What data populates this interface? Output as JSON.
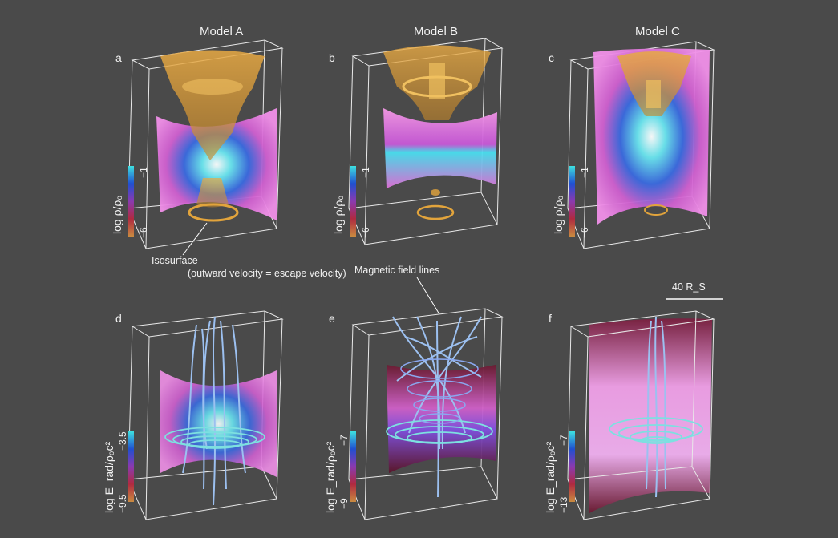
{
  "models": [
    {
      "title": "Model A"
    },
    {
      "title": "Model B"
    },
    {
      "title": "Model C"
    }
  ],
  "panels": [
    {
      "letter": "a",
      "colorbar": {
        "label": "log ρ/ρ₀",
        "max": "−1",
        "min": "−6"
      }
    },
    {
      "letter": "b",
      "colorbar": {
        "label": "log ρ/ρ₀",
        "max": "−1",
        "min": "−6"
      }
    },
    {
      "letter": "c",
      "colorbar": {
        "label": "log ρ/ρ₀",
        "max": "−1",
        "min": "−6"
      }
    },
    {
      "letter": "d",
      "colorbar": {
        "label": "log E_rad/ρ₀c²",
        "max": "−3.5",
        "min": "−9.5"
      }
    },
    {
      "letter": "e",
      "colorbar": {
        "label": "log E_rad/ρ₀c²",
        "max": "−7",
        "min": "−9"
      }
    },
    {
      "letter": "f",
      "colorbar": {
        "label": "log E_rad/ρ₀c²",
        "max": "−7",
        "min": "−13"
      }
    }
  ],
  "annotations": {
    "isosurface_line1": "Isosurface",
    "isosurface_line2": "(outward velocity = escape velocity)",
    "field_lines": "Magnetic field lines",
    "scale_bar": "40 R_S"
  },
  "colors": {
    "background": "#4a4a4a",
    "box_edges": "#e8e8e8",
    "isosurface": "#e2a43c",
    "disk_pink": "#e866c8",
    "disk_cyan": "#3fd8e0",
    "field_line_blue": "#8fb4f0",
    "colorbar_stops": [
      "#3ee0e0",
      "#2050d0",
      "#8a3ab0",
      "#b02a40",
      "#c98a40"
    ]
  }
}
